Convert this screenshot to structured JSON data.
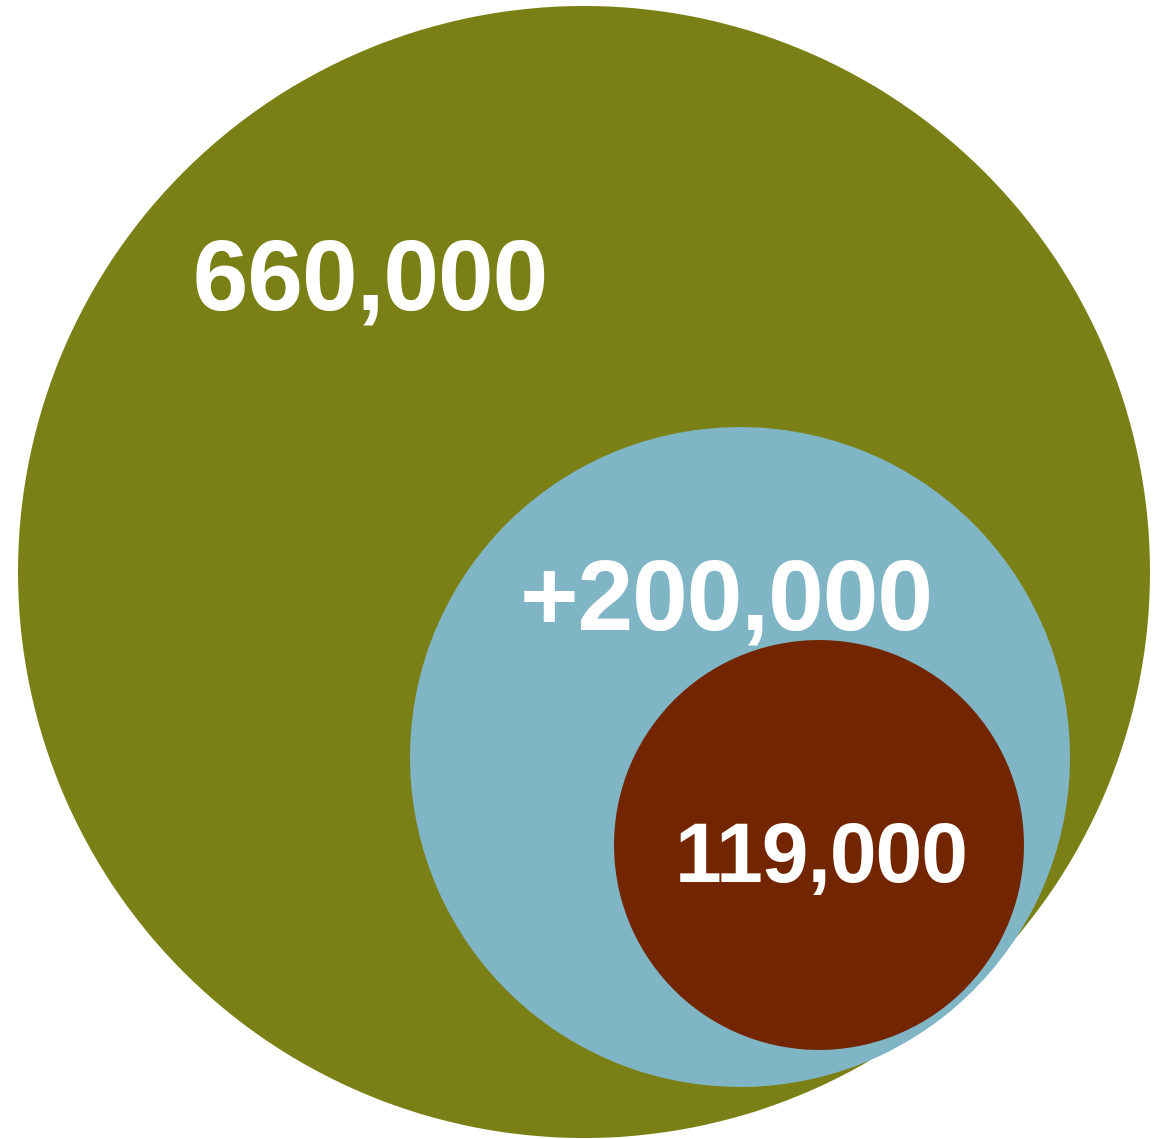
{
  "chart_data": {
    "type": "nested-bubble",
    "bubbles": [
      {
        "label": "660,000",
        "value": 660000,
        "color": "#7b8016"
      },
      {
        "label": "+200,000",
        "value": 200000,
        "color": "#7fb5c4"
      },
      {
        "label": "119,000",
        "value": 119000,
        "color": "#732500"
      }
    ]
  }
}
